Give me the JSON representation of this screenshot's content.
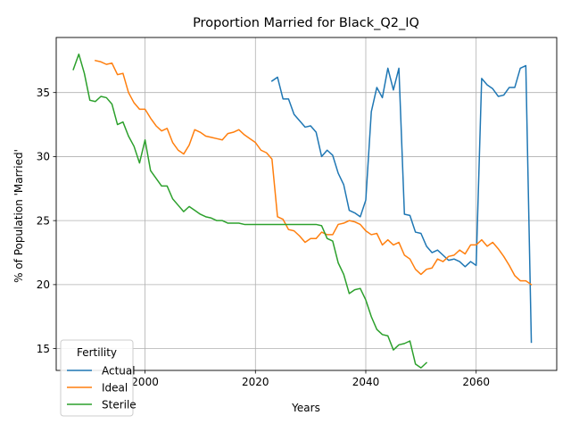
{
  "chart_data": {
    "type": "line",
    "title": "Proportion Married for Black_Q2_IQ",
    "xlabel": "Years",
    "ylabel": "% of Population 'Married'",
    "xlim": [
      1983.9,
      2074.6
    ],
    "ylim": [
      13.3,
      39.3
    ],
    "xticks": [
      2000,
      2020,
      2040,
      2060
    ],
    "yticks": [
      15,
      20,
      25,
      30,
      35
    ],
    "grid": true,
    "legend": {
      "title": "Fertility",
      "location": "lower-left"
    },
    "series": [
      {
        "name": "Actual",
        "color": "#1f77b4",
        "x": [
          2023,
          2024,
          2025,
          2026,
          2027,
          2028,
          2029,
          2030,
          2031,
          2032,
          2033,
          2034,
          2035,
          2036,
          2037,
          2038,
          2039,
          2040,
          2041,
          2042,
          2043,
          2044,
          2045,
          2046,
          2047,
          2048,
          2049,
          2050,
          2051,
          2052,
          2053,
          2054,
          2055,
          2056,
          2057,
          2058,
          2059,
          2060,
          2061,
          2062,
          2063,
          2064,
          2065,
          2066,
          2067,
          2068,
          2069,
          2070
        ],
        "y": [
          35.9,
          36.2,
          34.5,
          34.5,
          33.3,
          32.8,
          32.3,
          32.4,
          31.9,
          30.0,
          30.5,
          30.1,
          28.7,
          27.8,
          25.8,
          25.6,
          25.3,
          26.6,
          33.5,
          35.4,
          34.6,
          36.9,
          35.2,
          36.9,
          25.5,
          25.4,
          24.1,
          24.0,
          23.0,
          22.5,
          22.7,
          22.3,
          21.9,
          22.0,
          21.8,
          21.4,
          21.8,
          21.5,
          36.1,
          35.6,
          35.3,
          34.7,
          34.8,
          35.4,
          35.4,
          36.9,
          37.1,
          15.5
        ]
      },
      {
        "name": "Ideal",
        "color": "#ff7f0e",
        "x": [
          1991,
          1992,
          1993,
          1994,
          1995,
          1996,
          1997,
          1998,
          1999,
          2000,
          2001,
          2002,
          2003,
          2004,
          2005,
          2006,
          2007,
          2008,
          2009,
          2010,
          2011,
          2012,
          2013,
          2014,
          2015,
          2016,
          2017,
          2018,
          2019,
          2020,
          2021,
          2022,
          2023,
          2024,
          2025,
          2026,
          2027,
          2028,
          2029,
          2030,
          2031,
          2032,
          2033,
          2034,
          2035,
          2036,
          2037,
          2038,
          2039,
          2040,
          2041,
          2042,
          2043,
          2044,
          2045,
          2046,
          2047,
          2048,
          2049,
          2050,
          2051,
          2052,
          2053,
          2054,
          2055,
          2056,
          2057,
          2058,
          2059,
          2060,
          2061,
          2062,
          2063,
          2064,
          2065,
          2066,
          2067,
          2068,
          2069,
          2070
        ],
        "y": [
          37.5,
          37.4,
          37.2,
          37.3,
          36.4,
          36.5,
          35.0,
          34.2,
          33.7,
          33.7,
          33.0,
          32.4,
          32.0,
          32.2,
          31.1,
          30.5,
          30.2,
          30.9,
          32.1,
          31.9,
          31.6,
          31.5,
          31.4,
          31.3,
          31.8,
          31.9,
          32.1,
          31.7,
          31.4,
          31.1,
          30.5,
          30.3,
          29.8,
          25.3,
          25.1,
          24.3,
          24.2,
          23.8,
          23.3,
          23.6,
          23.6,
          24.1,
          23.9,
          23.9,
          24.7,
          24.8,
          25.0,
          24.9,
          24.7,
          24.2,
          23.9,
          24.0,
          23.1,
          23.5,
          23.1,
          23.3,
          22.3,
          22.0,
          21.2,
          20.8,
          21.2,
          21.3,
          22.0,
          21.8,
          22.2,
          22.3,
          22.7,
          22.4,
          23.1,
          23.1,
          23.5,
          23.0,
          23.3,
          22.8,
          22.2,
          21.5,
          20.7,
          20.3,
          20.3,
          20.0
        ]
      },
      {
        "name": "Sterile",
        "color": "#2ca02c",
        "x": [
          1987,
          1988,
          1989,
          1990,
          1991,
          1992,
          1993,
          1994,
          1995,
          1996,
          1997,
          1998,
          1999,
          2000,
          2001,
          2002,
          2003,
          2004,
          2005,
          2006,
          2007,
          2008,
          2009,
          2010,
          2011,
          2012,
          2013,
          2014,
          2015,
          2016,
          2017,
          2018,
          2019,
          2020,
          2021,
          2022,
          2023,
          2024,
          2025,
          2026,
          2027,
          2028,
          2029,
          2030,
          2031,
          2032,
          2033,
          2034,
          2035,
          2036,
          2037,
          2038,
          2039,
          2040,
          2041,
          2042,
          2043,
          2044,
          2045,
          2046,
          2047,
          2048,
          2049,
          2050,
          2051
        ],
        "y": [
          36.8,
          38.0,
          36.5,
          34.4,
          34.3,
          34.7,
          34.6,
          34.1,
          32.5,
          32.7,
          31.6,
          30.8,
          29.5,
          31.3,
          28.9,
          28.3,
          27.7,
          27.7,
          26.7,
          26.2,
          25.7,
          26.1,
          25.8,
          25.5,
          25.3,
          25.2,
          25.0,
          25.0,
          24.8,
          24.8,
          24.8,
          24.7,
          24.7,
          24.7,
          24.7,
          24.7,
          24.7,
          24.7,
          24.7,
          24.7,
          24.7,
          24.7,
          24.7,
          24.7,
          24.7,
          24.6,
          23.6,
          23.4,
          21.7,
          20.8,
          19.3,
          19.6,
          19.7,
          18.8,
          17.5,
          16.5,
          16.1,
          16.0,
          14.9,
          15.3,
          15.4,
          15.6,
          13.8,
          13.5,
          13.9
        ]
      }
    ]
  }
}
